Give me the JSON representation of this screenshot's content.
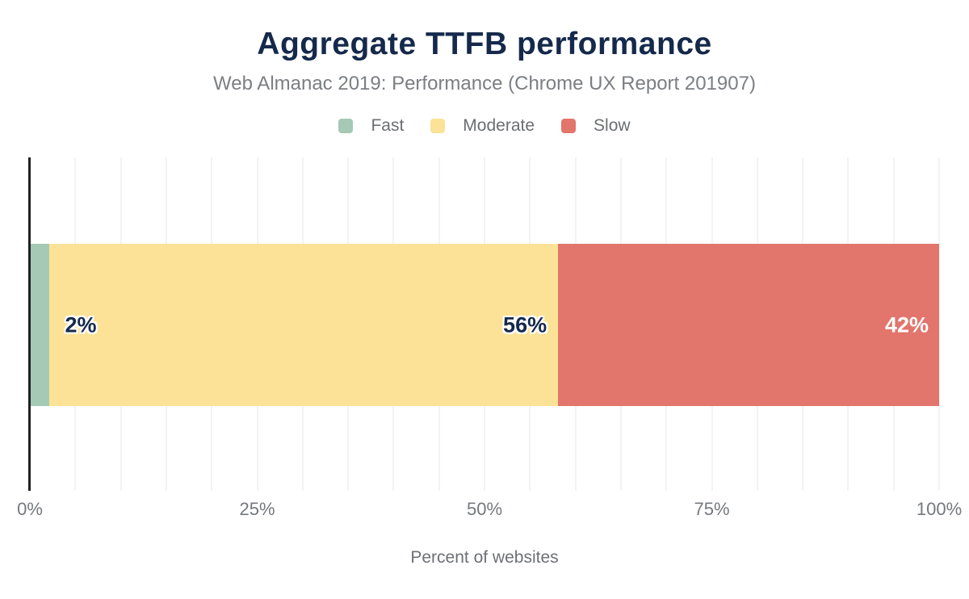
{
  "chart_data": {
    "type": "bar",
    "orientation": "horizontal",
    "stacked": true,
    "title": "Aggregate TTFB performance",
    "subtitle": "Web Almanac 2019: Performance (Chrome UX Report 201907)",
    "xlabel": "Percent of websites",
    "xlim": [
      0,
      100
    ],
    "x_ticks": [
      {
        "value": 0,
        "label": "0%"
      },
      {
        "value": 25,
        "label": "25%"
      },
      {
        "value": 50,
        "label": "50%"
      },
      {
        "value": 75,
        "label": "75%"
      },
      {
        "value": 100,
        "label": "100%"
      }
    ],
    "gridline_step_percent": 5,
    "grid": "vertical",
    "legend_position": "top",
    "legend": [
      "Fast",
      "Moderate",
      "Slow"
    ],
    "series": [
      {
        "name": "Fast",
        "value": 2,
        "label": "2%",
        "color": "#a4c9b4",
        "label_color": "#15294b"
      },
      {
        "name": "Moderate",
        "value": 56,
        "label": "56%",
        "color": "#fce296",
        "label_color": "#15294b"
      },
      {
        "name": "Slow",
        "value": 42,
        "label": "42%",
        "color": "#e2756c",
        "label_color": "#ffffff"
      }
    ]
  },
  "colors": {
    "title_text": "#15294b",
    "subtitle_text": "#7b7e83",
    "legend_text": "#6b6e73",
    "tick_text": "#75787d",
    "axis_line": "#212121",
    "gridline": "#f3f3f3",
    "background": "#ffffff"
  }
}
